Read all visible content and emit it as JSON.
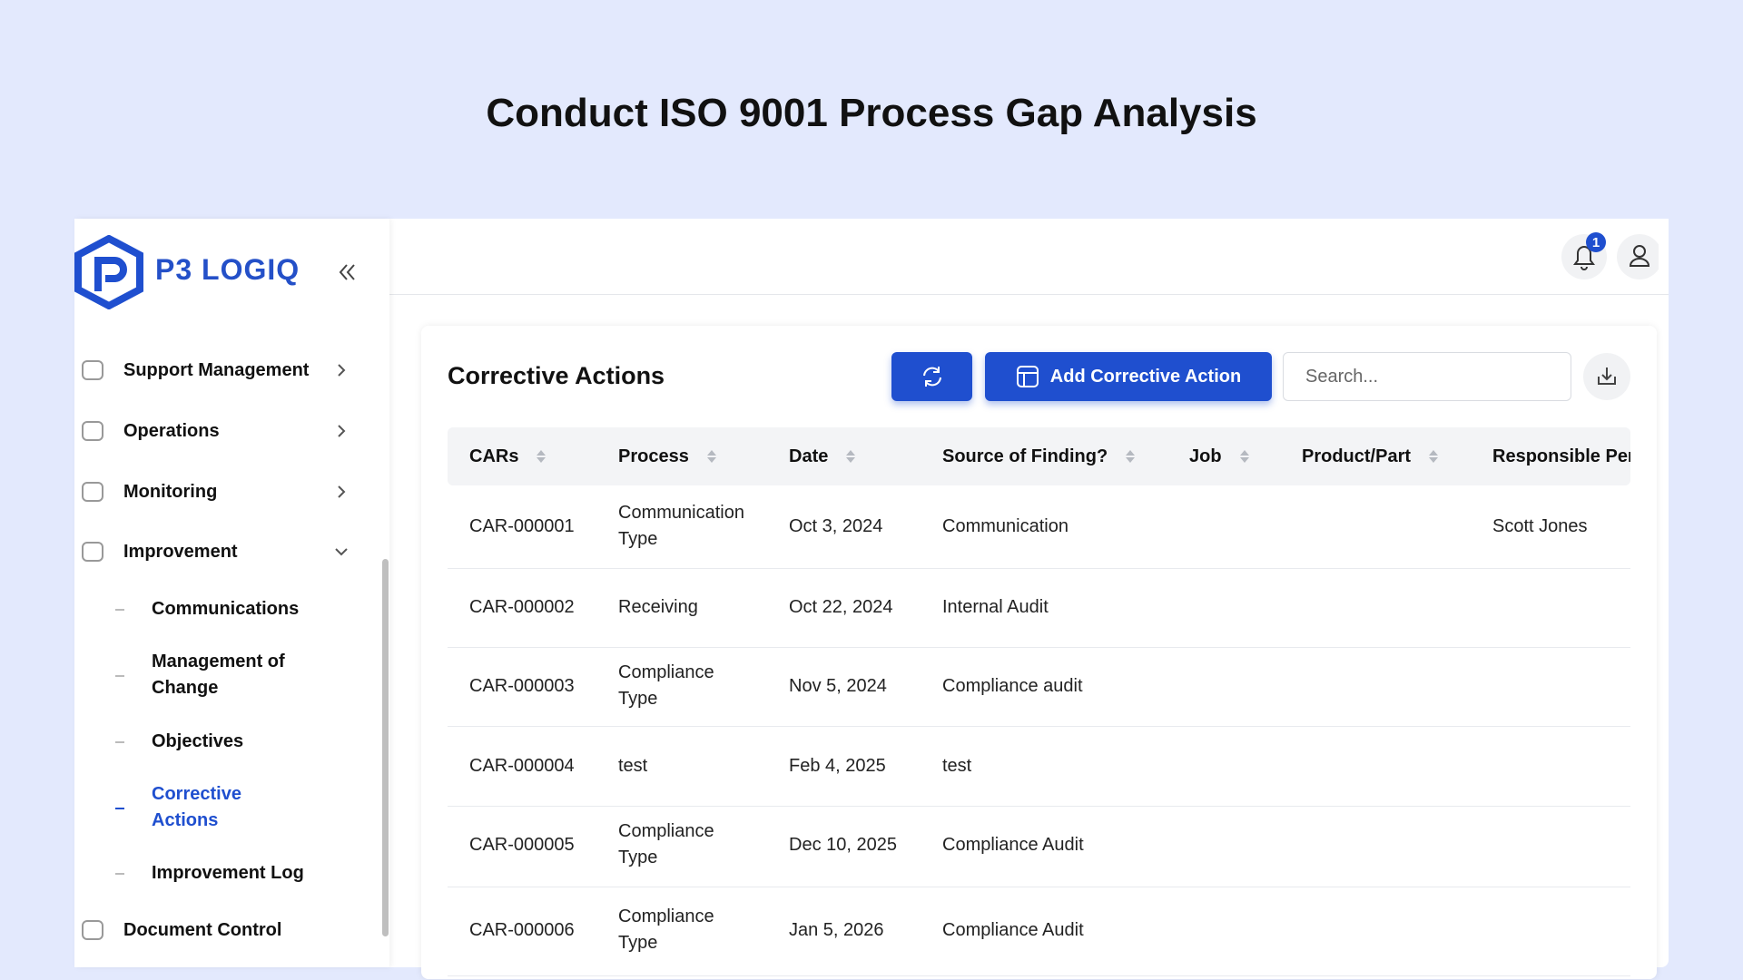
{
  "page_title": "Conduct ISO 9001 Process Gap Analysis",
  "app": {
    "logo": "P3 LOGIQ"
  },
  "sidebar": {
    "items": [
      {
        "label": "Support Management"
      },
      {
        "label": "Operations"
      },
      {
        "label": "Monitoring"
      },
      {
        "label": "Improvement",
        "children": [
          "Communications",
          "Management of Change",
          "Objectives",
          "Corrective Actions",
          "Improvement Log"
        ]
      },
      {
        "label": "Document Control"
      }
    ],
    "active_child": 3
  },
  "header": {
    "notification_count": 1
  },
  "panel": {
    "title": "Corrective Actions",
    "add_button": "Add Corrective Action",
    "search_placeholder": "Search..."
  },
  "table": {
    "columns": [
      "CARs",
      "Process",
      "Date",
      "Source of Finding?",
      "Job",
      "Product/Part",
      "Responsible Person"
    ],
    "rows": [
      {
        "car": "CAR-000001",
        "process": "Communication Type",
        "date": "Oct 3, 2024",
        "source": "Communication",
        "responsible": "Scott Jones"
      },
      {
        "car": "CAR-000002",
        "process": "Receiving",
        "date": "Oct 22, 2024",
        "source": "Internal Audit"
      },
      {
        "car": "CAR-000003",
        "process": "Compliance Type",
        "date": "Nov 5, 2024",
        "source": "Compliance audit"
      },
      {
        "car": "CAR-000004",
        "process": "test",
        "date": "Feb 4, 2025",
        "source": "test"
      },
      {
        "car": "CAR-000005",
        "process": "Compliance Type",
        "date": "Dec 10, 2025",
        "source": "Compliance Audit"
      },
      {
        "car": "CAR-000006",
        "process": "Compliance Type",
        "date": "Jan 5, 2026",
        "source": "Compliance Audit"
      }
    ]
  }
}
